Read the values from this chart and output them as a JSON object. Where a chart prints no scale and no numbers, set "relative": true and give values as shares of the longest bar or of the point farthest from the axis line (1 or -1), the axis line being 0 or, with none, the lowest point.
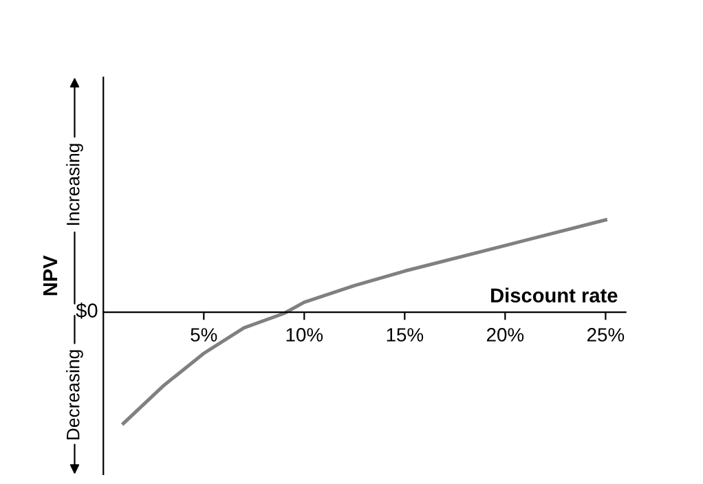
{
  "chart_data": {
    "type": "line",
    "relative": true,
    "xlabel": "Discount rate",
    "ylabel": "NPV",
    "x": [
      1,
      3,
      5,
      7,
      9,
      10,
      12.5,
      15,
      20,
      25
    ],
    "series": [
      {
        "color": "#808080",
        "values": [
          -1.0,
          -0.66,
          -0.37,
          -0.14,
          -0.01,
          0.09,
          0.24,
          0.37,
          0.6,
          0.83
        ]
      }
    ],
    "xlim": [
      0,
      26
    ],
    "xticks": [
      {
        "value": 5,
        "label": "5%"
      },
      {
        "value": 10,
        "label": "10%"
      },
      {
        "value": 15,
        "label": "15%"
      },
      {
        "value": 20,
        "label": "20%"
      },
      {
        "value": 25,
        "label": "25%"
      }
    ],
    "annotations": [
      "Increasing",
      "Decreasing",
      "$0"
    ],
    "grid": false,
    "legend": false,
    "marker": "none",
    "line_style": "solid"
  }
}
